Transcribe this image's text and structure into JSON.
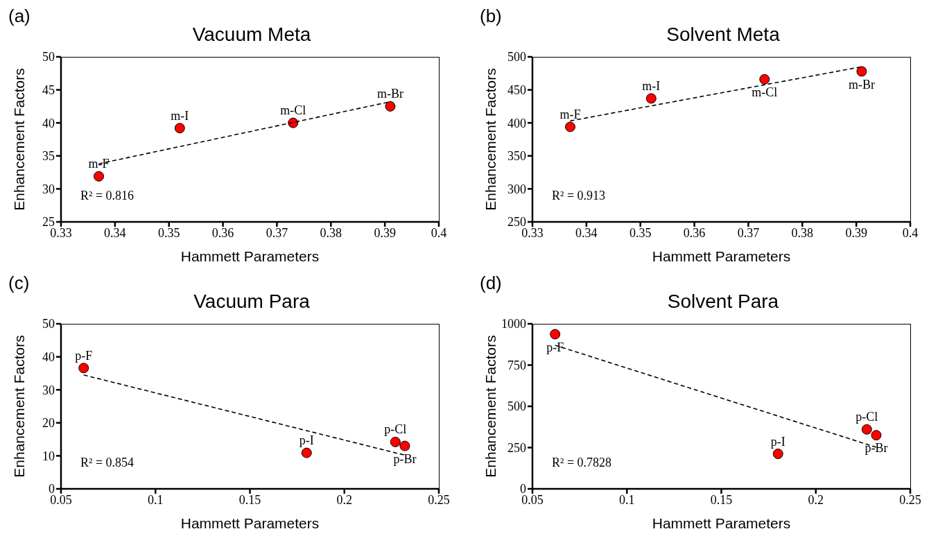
{
  "chart_data": [
    {
      "type": "scatter",
      "title": "Vacuum Meta",
      "xlabel": "Hammett Parameters",
      "ylabel": "Enhancement Factors",
      "x": [
        0.337,
        0.352,
        0.373,
        0.391
      ],
      "xlim": [
        0.33,
        0.4
      ],
      "xticks": [
        0.33,
        0.34,
        0.35,
        0.36,
        0.37,
        0.38,
        0.39,
        0.4
      ],
      "ylim": [
        25,
        50
      ],
      "yticks": [
        25,
        30,
        35,
        40,
        45,
        50
      ],
      "series": [
        {
          "color": "#ff0000",
          "marker": "circle",
          "values": [
            31.9,
            39.2,
            40.0,
            42.5
          ]
        },
        {
          "type": "line",
          "color": "#000000",
          "marker": "none",
          "line_style": "dashed",
          "x": [
            0.337,
            0.391
          ],
          "values": [
            33.8,
            43.2
          ]
        }
      ],
      "annotations": [
        "(a)",
        "R² = 0.816",
        {
          "text": "m-F",
          "x": 0.337,
          "y": 31.9
        },
        {
          "text": "m-I",
          "x": 0.352,
          "y": 39.2
        },
        {
          "text": "m-Cl",
          "x": 0.373,
          "y": 40.0
        },
        {
          "text": "m-Br",
          "x": 0.391,
          "y": 42.5
        }
      ]
    },
    {
      "type": "scatter",
      "title": "Solvent Meta",
      "xlabel": "Hammett Parameters",
      "ylabel": "Enhancement Factors",
      "x": [
        0.337,
        0.352,
        0.373,
        0.391
      ],
      "xlim": [
        0.33,
        0.4
      ],
      "xticks": [
        0.33,
        0.34,
        0.35,
        0.36,
        0.37,
        0.38,
        0.39,
        0.4
      ],
      "ylim": [
        250,
        500
      ],
      "yticks": [
        250,
        300,
        350,
        400,
        450,
        500
      ],
      "series": [
        {
          "color": "#ff0000",
          "marker": "circle",
          "values": [
            394,
            437,
            466,
            478
          ]
        },
        {
          "type": "line",
          "color": "#000000",
          "marker": "none",
          "line_style": "dashed",
          "x": [
            0.337,
            0.391
          ],
          "values": [
            403,
            485
          ]
        }
      ],
      "annotations": [
        "(b)",
        "R² = 0.913",
        {
          "text": "m-F",
          "x": 0.337,
          "y": 394
        },
        {
          "text": "m-I",
          "x": 0.352,
          "y": 437
        },
        {
          "text": "m-Cl",
          "x": 0.373,
          "y": 466
        },
        {
          "text": "m-Br",
          "x": 0.391,
          "y": 478
        }
      ]
    },
    {
      "type": "scatter",
      "title": "Vacuum Para",
      "xlabel": "Hammett Parameters",
      "ylabel": "Enhancement Factors",
      "x": [
        0.062,
        0.18,
        0.227,
        0.232
      ],
      "xlim": [
        0.05,
        0.25
      ],
      "xticks": [
        0.05,
        0.1,
        0.15,
        0.2,
        0.25
      ],
      "ylim": [
        0,
        50
      ],
      "yticks": [
        0,
        10,
        20,
        30,
        40,
        50
      ],
      "series": [
        {
          "color": "#ff0000",
          "marker": "circle",
          "values": [
            36.6,
            10.9,
            14.2,
            13.0
          ]
        },
        {
          "type": "line",
          "color": "#000000",
          "marker": "none",
          "line_style": "dashed",
          "x": [
            0.062,
            0.232
          ],
          "values": [
            34.5,
            10.2
          ]
        }
      ],
      "annotations": [
        "(c)",
        "R² = 0.854",
        {
          "text": "p-F",
          "x": 0.062,
          "y": 36.6
        },
        {
          "text": "p-I",
          "x": 0.18,
          "y": 10.9
        },
        {
          "text": "p-Cl",
          "x": 0.227,
          "y": 14.2
        },
        {
          "text": "p-Br",
          "x": 0.232,
          "y": 13.0
        }
      ]
    },
    {
      "type": "scatter",
      "title": "Solvent Para",
      "xlabel": "Hammett Parameters",
      "ylabel": "Enhancement Factors",
      "x": [
        0.062,
        0.18,
        0.227,
        0.232
      ],
      "xlim": [
        0.05,
        0.25
      ],
      "xticks": [
        0.05,
        0.1,
        0.15,
        0.2,
        0.25
      ],
      "ylim": [
        0,
        1000
      ],
      "yticks": [
        0,
        250,
        500,
        750,
        1000
      ],
      "series": [
        {
          "color": "#ff0000",
          "marker": "circle",
          "values": [
            937,
            212,
            360,
            325
          ]
        },
        {
          "type": "line",
          "color": "#000000",
          "marker": "none",
          "line_style": "dashed",
          "x": [
            0.062,
            0.232
          ],
          "values": [
            870,
            252
          ]
        }
      ],
      "annotations": [
        "(d)",
        "R² = 0.7828",
        {
          "text": "p-F",
          "x": 0.062,
          "y": 937
        },
        {
          "text": "p-I",
          "x": 0.18,
          "y": 212
        },
        {
          "text": "p-Cl",
          "x": 0.227,
          "y": 360
        },
        {
          "text": "p-Br",
          "x": 0.232,
          "y": 325
        }
      ]
    }
  ]
}
